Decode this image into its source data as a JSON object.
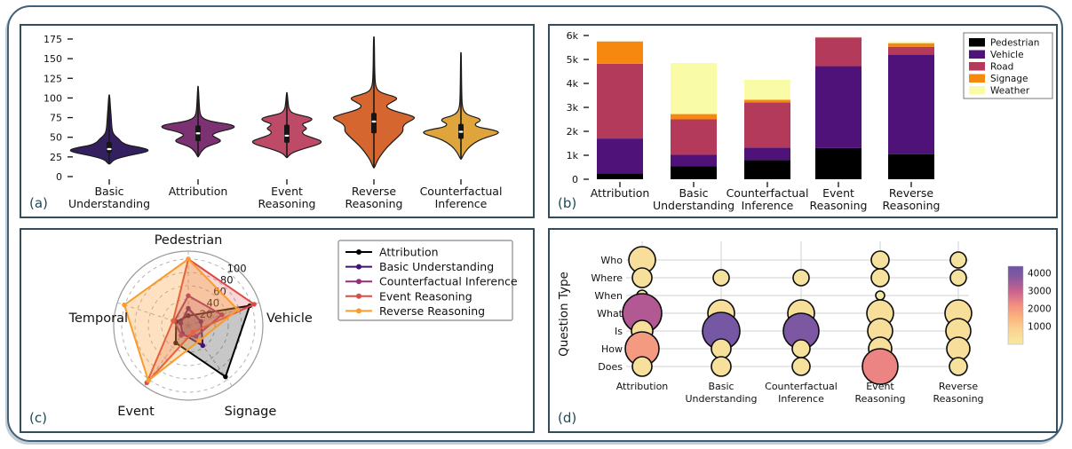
{
  "figure": {
    "label_color": "#1c4a57",
    "panels": [
      {
        "label": "(a)"
      },
      {
        "label": "(b)"
      },
      {
        "label": "(c)"
      },
      {
        "label": "(d)"
      }
    ]
  },
  "chart_data": [
    {
      "id": "a",
      "type": "violin",
      "ylim": [
        0,
        185
      ],
      "yticks": [
        0,
        25,
        50,
        75,
        100,
        125,
        150,
        175
      ],
      "violins": [
        {
          "label": "Basic\nUnderstanding",
          "color": "#34205e",
          "median": 35,
          "q1": 30,
          "q3": 44,
          "whisker_low": 16,
          "whisker_high": 104,
          "max_halfwidth": 45,
          "profile": [
            [
              16,
              0.02
            ],
            [
              22,
              0.12
            ],
            [
              27,
              0.5
            ],
            [
              31,
              0.92
            ],
            [
              34,
              1.0
            ],
            [
              37,
              0.78
            ],
            [
              40,
              0.45
            ],
            [
              44,
              0.3
            ],
            [
              48,
              0.24
            ],
            [
              52,
              0.14
            ],
            [
              57,
              0.08
            ],
            [
              65,
              0.06
            ],
            [
              75,
              0.05
            ],
            [
              88,
              0.03
            ],
            [
              104,
              0.01
            ]
          ]
        },
        {
          "label": "Attribution",
          "color": "#7c3173",
          "median": 55,
          "q1": 45,
          "q3": 65,
          "whisker_low": 25,
          "whisker_high": 115,
          "max_halfwidth": 42,
          "profile": [
            [
              25,
              0.01
            ],
            [
              32,
              0.08
            ],
            [
              38,
              0.22
            ],
            [
              43,
              0.55
            ],
            [
              46,
              0.62
            ],
            [
              49,
              0.5
            ],
            [
              53,
              0.35
            ],
            [
              57,
              0.55
            ],
            [
              61,
              0.92
            ],
            [
              64,
              1.0
            ],
            [
              67,
              0.8
            ],
            [
              70,
              0.35
            ],
            [
              74,
              0.12
            ],
            [
              80,
              0.05
            ],
            [
              92,
              0.03
            ],
            [
              115,
              0.01
            ]
          ]
        },
        {
          "label": "Event\nReasoning",
          "color": "#bd4a66",
          "median": 52,
          "q1": 43,
          "q3": 66,
          "whisker_low": 24,
          "whisker_high": 107,
          "max_halfwidth": 40,
          "profile": [
            [
              24,
              0.01
            ],
            [
              30,
              0.12
            ],
            [
              36,
              0.5
            ],
            [
              41,
              0.9
            ],
            [
              45,
              1.0
            ],
            [
              49,
              0.75
            ],
            [
              53,
              0.48
            ],
            [
              57,
              0.42
            ],
            [
              61,
              0.58
            ],
            [
              64,
              0.48
            ],
            [
              67,
              0.42
            ],
            [
              71,
              0.68
            ],
            [
              74,
              0.72
            ],
            [
              77,
              0.5
            ],
            [
              80,
              0.18
            ],
            [
              85,
              0.06
            ],
            [
              95,
              0.03
            ],
            [
              107,
              0.01
            ]
          ]
        },
        {
          "label": "Reverse\nReasoning",
          "color": "#d5662f",
          "median": 70,
          "q1": 55,
          "q3": 81,
          "whisker_low": 11,
          "whisker_high": 178,
          "max_halfwidth": 46,
          "profile": [
            [
              11,
              0.01
            ],
            [
              20,
              0.08
            ],
            [
              28,
              0.18
            ],
            [
              36,
              0.3
            ],
            [
              44,
              0.45
            ],
            [
              52,
              0.62
            ],
            [
              58,
              0.72
            ],
            [
              63,
              0.7
            ],
            [
              68,
              0.78
            ],
            [
              73,
              0.98
            ],
            [
              76,
              1.0
            ],
            [
              80,
              0.75
            ],
            [
              85,
              0.4
            ],
            [
              90,
              0.28
            ],
            [
              95,
              0.45
            ],
            [
              99,
              0.58
            ],
            [
              102,
              0.5
            ],
            [
              106,
              0.2
            ],
            [
              111,
              0.06
            ],
            [
              125,
              0.02
            ],
            [
              178,
              0.01
            ]
          ]
        },
        {
          "label": "Counterfactual\nInference",
          "color": "#dfa53c",
          "median": 57,
          "q1": 48,
          "q3": 67,
          "whisker_low": 22,
          "whisker_high": 158,
          "max_halfwidth": 43,
          "profile": [
            [
              22,
              0.01
            ],
            [
              29,
              0.08
            ],
            [
              36,
              0.18
            ],
            [
              43,
              0.35
            ],
            [
              49,
              0.6
            ],
            [
              54,
              0.95
            ],
            [
              57,
              1.0
            ],
            [
              60,
              0.78
            ],
            [
              63,
              0.42
            ],
            [
              67,
              0.35
            ],
            [
              71,
              0.52
            ],
            [
              74,
              0.48
            ],
            [
              77,
              0.25
            ],
            [
              81,
              0.1
            ],
            [
              88,
              0.04
            ],
            [
              100,
              0.02
            ],
            [
              158,
              0.01
            ]
          ]
        }
      ]
    },
    {
      "id": "b",
      "type": "stacked_bar",
      "yticks": [
        "0",
        "1k",
        "2k",
        "3k",
        "4k",
        "5k",
        "6k"
      ],
      "ymax_units": 6000,
      "categories": [
        "Attribution",
        "Basic\nUnderstanding",
        "Counterfactual\nInference",
        "Event\nReasoning",
        "Reverse\nReasoning"
      ],
      "series": [
        {
          "name": "Pedestrian",
          "color": "#000000",
          "values": [
            250,
            550,
            800,
            1300,
            1050
          ]
        },
        {
          "name": "Vehicle",
          "color": "#4f1279",
          "values": [
            1450,
            470,
            520,
            3420,
            4150
          ]
        },
        {
          "name": "Road",
          "color": "#b43a5c",
          "values": [
            3120,
            1480,
            1890,
            1200,
            330
          ]
        },
        {
          "name": "Signage",
          "color": "#f6880f",
          "values": [
            930,
            220,
            110,
            0,
            150
          ]
        },
        {
          "name": "Weather",
          "color": "#f9fba6",
          "values": [
            0,
            2130,
            830,
            50,
            70
          ]
        }
      ]
    },
    {
      "id": "c",
      "type": "radar",
      "axes": [
        "Pedestrian",
        "Vehicle",
        "Signage",
        "Event",
        "Temporal"
      ],
      "rings": [
        20,
        40,
        60,
        80,
        100
      ],
      "series": [
        {
          "name": "Attribution",
          "color": "#000000",
          "values": [
            15,
            97,
            95,
            32,
            19
          ]
        },
        {
          "name": "Basic Understanding",
          "color": "#43116e",
          "values": [
            26,
            20,
            37,
            15,
            12
          ]
        },
        {
          "name": "Counterfactual Inference",
          "color": "#952c77",
          "values": [
            45,
            53,
            20,
            18,
            22
          ]
        },
        {
          "name": "Event Reasoning",
          "color": "#dd4a43",
          "values": [
            100,
            104,
            12,
            106,
            24
          ]
        },
        {
          "name": "Reverse Reasoning",
          "color": "#f89c2d",
          "values": [
            100,
            78,
            28,
            102,
            101
          ]
        }
      ]
    },
    {
      "id": "d",
      "type": "bubble",
      "ylabel": "Question Type",
      "text_color": "#2a5f57",
      "rows": [
        "Who",
        "Where",
        "When",
        "What",
        "Is",
        "How",
        "Does"
      ],
      "columns": [
        "Attribution",
        "Basic\nUnderstanding",
        "Counterfactual\nInference",
        "Event\nReasoning",
        "Reverse\nReasoning"
      ],
      "colorbar": {
        "ticks": [
          1000,
          2000,
          3000,
          4000
        ],
        "vmax": 4400
      },
      "bubbles": [
        {
          "col": 0,
          "row": "Who",
          "value": 700,
          "r": 15
        },
        {
          "col": 0,
          "row": "Where",
          "value": 600,
          "r": 11
        },
        {
          "col": 0,
          "row": "When",
          "value": 150,
          "r": 6
        },
        {
          "col": 0,
          "row": "What",
          "value": 3300,
          "r": 22
        },
        {
          "col": 0,
          "row": "Is",
          "value": 650,
          "r": 12
        },
        {
          "col": 0,
          "row": "How",
          "value": 1900,
          "r": 19
        },
        {
          "col": 0,
          "row": "Does",
          "value": 600,
          "r": 11
        },
        {
          "col": 1,
          "row": "Where",
          "value": 450,
          "r": 9
        },
        {
          "col": 1,
          "row": "What",
          "value": 750,
          "r": 15
        },
        {
          "col": 1,
          "row": "Is",
          "value": 4200,
          "r": 21
        },
        {
          "col": 1,
          "row": "How",
          "value": 600,
          "r": 11
        },
        {
          "col": 1,
          "row": "Does",
          "value": 650,
          "r": 11
        },
        {
          "col": 2,
          "row": "Where",
          "value": 450,
          "r": 9
        },
        {
          "col": 2,
          "row": "What",
          "value": 750,
          "r": 15
        },
        {
          "col": 2,
          "row": "Is",
          "value": 4100,
          "r": 20
        },
        {
          "col": 2,
          "row": "How",
          "value": 550,
          "r": 10
        },
        {
          "col": 2,
          "row": "Does",
          "value": 550,
          "r": 10
        },
        {
          "col": 3,
          "row": "Who",
          "value": 500,
          "r": 10
        },
        {
          "col": 3,
          "row": "Where",
          "value": 550,
          "r": 10
        },
        {
          "col": 3,
          "row": "When",
          "value": 120,
          "r": 5
        },
        {
          "col": 3,
          "row": "What",
          "value": 800,
          "r": 15
        },
        {
          "col": 3,
          "row": "Is",
          "value": 700,
          "r": 14
        },
        {
          "col": 3,
          "row": "How",
          "value": 650,
          "r": 13
        },
        {
          "col": 3,
          "row": "Does",
          "value": 2300,
          "r": 20
        },
        {
          "col": 4,
          "row": "Who",
          "value": 450,
          "r": 9
        },
        {
          "col": 4,
          "row": "Where",
          "value": 450,
          "r": 9
        },
        {
          "col": 4,
          "row": "What",
          "value": 800,
          "r": 15
        },
        {
          "col": 4,
          "row": "Is",
          "value": 750,
          "r": 14
        },
        {
          "col": 4,
          "row": "How",
          "value": 700,
          "r": 13
        },
        {
          "col": 4,
          "row": "Does",
          "value": 550,
          "r": 10
        }
      ]
    }
  ]
}
